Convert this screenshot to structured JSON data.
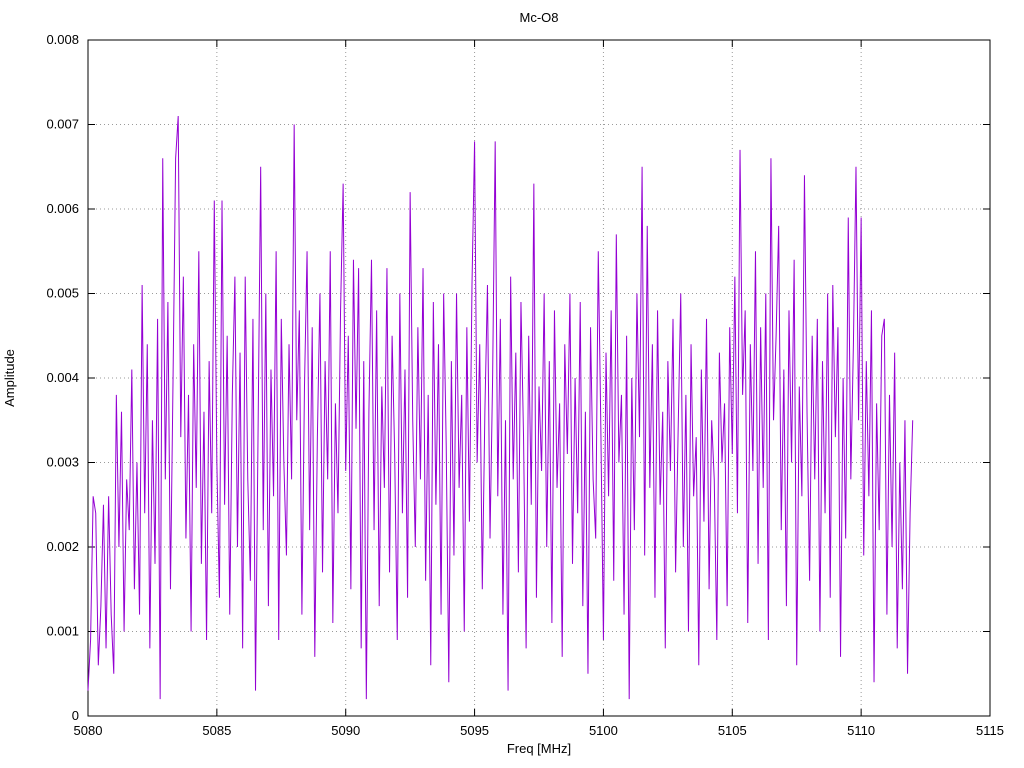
{
  "chart": {
    "title": "Mc-O8",
    "xlabel": "Freq [MHz]",
    "ylabel": "Amplitude"
  },
  "chart_data": {
    "type": "line",
    "title": "Mc-O8",
    "xlabel": "Freq [MHz]",
    "ylabel": "Amplitude",
    "xlim": [
      5080,
      5115
    ],
    "ylim": [
      0,
      0.008
    ],
    "grid": true,
    "legend": "none",
    "line_color": "#9400d3",
    "grid_color": "#9a9a9a",
    "border_color": "#000000",
    "background_color": "#ffffff",
    "x_ticks": [
      5080,
      5085,
      5090,
      5095,
      5100,
      5105,
      5110,
      5115
    ],
    "x_tick_labels": [
      "5080",
      "5085",
      "5090",
      "5095",
      "5100",
      "5105",
      "5110",
      "5115"
    ],
    "y_ticks": [
      0,
      0.001,
      0.002,
      0.003,
      0.004,
      0.005,
      0.006,
      0.007,
      0.008
    ],
    "y_tick_labels": [
      "0",
      "0.001",
      "0.002",
      "0.003",
      "0.004",
      "0.005",
      "0.006",
      "0.007",
      "0.008"
    ],
    "series": [
      {
        "name": "Mc-O8",
        "x_start": 5080.0,
        "x_step": 0.1,
        "y_scale": 0.0001,
        "values": [
          3,
          9,
          26,
          24,
          6,
          13,
          25,
          8,
          26,
          12,
          5,
          38,
          20,
          36,
          10,
          28,
          22,
          41,
          15,
          30,
          12,
          51,
          24,
          44,
          8,
          35,
          18,
          47,
          2,
          66,
          28,
          49,
          15,
          40,
          66,
          71,
          33,
          52,
          21,
          38,
          10,
          44,
          27,
          55,
          18,
          36,
          9,
          42,
          24,
          61,
          30,
          14,
          61,
          25,
          45,
          12,
          38,
          52,
          20,
          43,
          8,
          52,
          28,
          16,
          47,
          3,
          34,
          65,
          22,
          50,
          13,
          41,
          26,
          55,
          9,
          47,
          30,
          19,
          44,
          28,
          70,
          35,
          48,
          12,
          39,
          55,
          22,
          46,
          7,
          33,
          50,
          17,
          42,
          28,
          55,
          11,
          37,
          24,
          48,
          63,
          29,
          45,
          15,
          54,
          34,
          53,
          8,
          42,
          2,
          36,
          54,
          22,
          48,
          13,
          39,
          27,
          53,
          17,
          45,
          31,
          9,
          50,
          24,
          41,
          14,
          62,
          35,
          20,
          46,
          28,
          53,
          16,
          38,
          6,
          49,
          25,
          44,
          12,
          50,
          32,
          4,
          42,
          19,
          50,
          27,
          38,
          10,
          46,
          23,
          51,
          68,
          30,
          44,
          15,
          36,
          51,
          21,
          40,
          68,
          26,
          47,
          12,
          35,
          3,
          52,
          28,
          43,
          17,
          49,
          33,
          8,
          45,
          25,
          63,
          14,
          39,
          29,
          50,
          20,
          42,
          11,
          48,
          27,
          37,
          7,
          44,
          31,
          50,
          18,
          40,
          24,
          49,
          13,
          36,
          5,
          46,
          28,
          21,
          55,
          34,
          9,
          43,
          26,
          48,
          16,
          57,
          30,
          38,
          12,
          45,
          2,
          40,
          22,
          50,
          33,
          65,
          19,
          58,
          27,
          44,
          14,
          48,
          25,
          36,
          8,
          42,
          29,
          47,
          17,
          34,
          50,
          20,
          38,
          10,
          44,
          26,
          33,
          6,
          41,
          23,
          47,
          15,
          35,
          28,
          9,
          43,
          30,
          37,
          13,
          46,
          31,
          52,
          24,
          67,
          38,
          48,
          11,
          44,
          29,
          55,
          18,
          46,
          27,
          50,
          9,
          66,
          35,
          45,
          58,
          22,
          41,
          13,
          48,
          30,
          54,
          6,
          39,
          26,
          64,
          36,
          16,
          45,
          28,
          47,
          10,
          42,
          24,
          50,
          14,
          51,
          33,
          46,
          7,
          40,
          21,
          59,
          28,
          44,
          65,
          35,
          59,
          19,
          42,
          26,
          48,
          4,
          37,
          22,
          45,
          47,
          12,
          38,
          20,
          43,
          8,
          30,
          15,
          35,
          5,
          24,
          35
        ]
      }
    ]
  }
}
